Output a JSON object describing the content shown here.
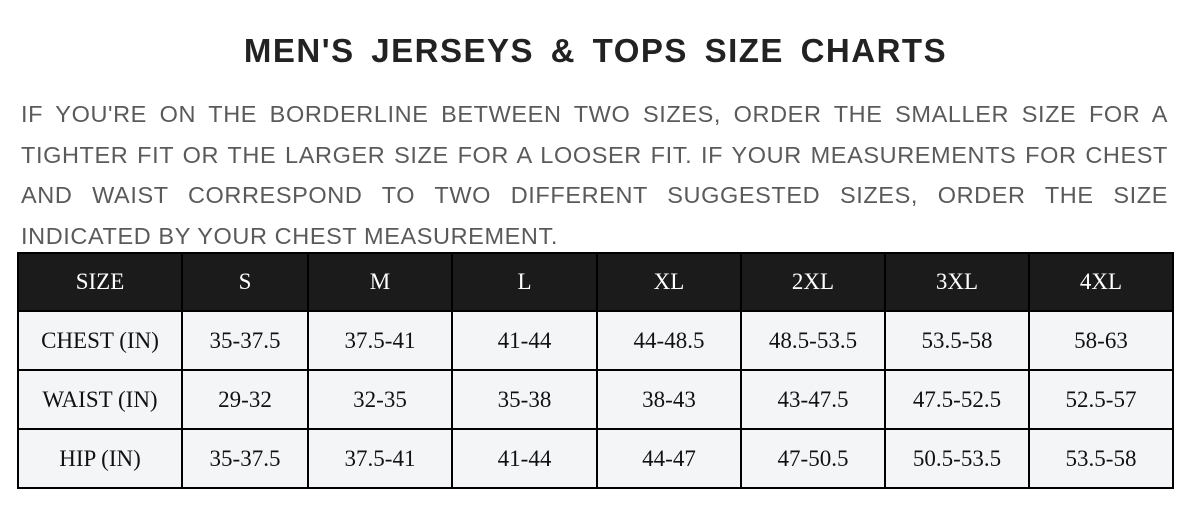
{
  "title": "MEN'S  JERSEYS  &  TOPS SIZE  CHARTS",
  "description": "IF YOU'RE ON THE BORDERLINE BETWEEN TWO SIZES, ORDER THE SMALLER SIZE FOR A TIGHTER FIT OR THE LARGER SIZE FOR A LOOSER FIT. IF YOUR MEASUREMENTS FOR CHEST AND WAIST CORRESPOND TO TWO DIFFERENT SUGGESTED SIZES, ORDER THE SIZE INDICATED BY YOUR CHEST MEASUREMENT.",
  "table": {
    "headers": [
      "SIZE",
      "S",
      "M",
      "L",
      "XL",
      "2XL",
      "3XL",
      "4XL"
    ],
    "rows": [
      [
        "CHEST (IN)",
        "35-37.5",
        "37.5-41",
        "41-44",
        "44-48.5",
        "48.5-53.5",
        "53.5-58",
        "58-63"
      ],
      [
        "WAIST (IN)",
        "29-32",
        "32-35",
        "35-38",
        "38-43",
        "43-47.5",
        "47.5-52.5",
        "52.5-57"
      ],
      [
        "HIP (IN)",
        "35-37.5",
        "37.5-41",
        "41-44",
        "44-47",
        "47-50.5",
        "50.5-53.5",
        "53.5-58"
      ]
    ]
  },
  "colors": {
    "header_bg": "#1b1b1b",
    "cell_bg": "#f4f5f7",
    "text": "#5a5a5a"
  }
}
